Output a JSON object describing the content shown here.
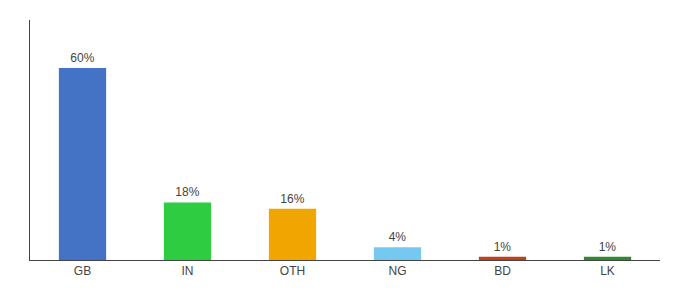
{
  "chart_data": {
    "type": "bar",
    "categories": [
      "GB",
      "IN",
      "OTH",
      "NG",
      "BD",
      "LK"
    ],
    "values": [
      60,
      18,
      16,
      4,
      1,
      1
    ],
    "value_labels": [
      "60%",
      "18%",
      "16%",
      "4%",
      "1%",
      "1%"
    ],
    "colors": [
      "#4472c4",
      "#2ecc40",
      "#f0a500",
      "#75c8f0",
      "#c0401a",
      "#2d8a2d"
    ],
    "ylim": [
      0,
      75
    ],
    "data_labels": true,
    "tick_labels": "x",
    "grid": false
  }
}
